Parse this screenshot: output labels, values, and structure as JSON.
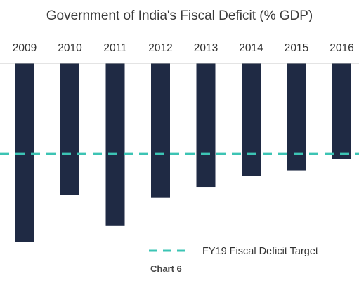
{
  "chart_data": {
    "type": "bar",
    "title": "Government of India's Fiscal Deficit (% GDP)",
    "categories": [
      "2009",
      "2010",
      "2011",
      "2012",
      "2013",
      "2014",
      "2015",
      "2016"
    ],
    "values": [
      -6.5,
      -4.8,
      -5.9,
      -4.9,
      -4.5,
      -4.1,
      -3.9,
      -3.5
    ],
    "reference_line": {
      "label": "FY19 Fiscal Deficit Target",
      "value": -3.3
    },
    "ylim": [
      -6.8,
      0
    ],
    "xaxis_position": "top",
    "legend_placement": "bottom-right",
    "grid": false,
    "colors": {
      "bar": "#1f2a44",
      "target": "#3cc4b4",
      "axis": "#c9c9c9"
    }
  },
  "caption": "Chart 6"
}
